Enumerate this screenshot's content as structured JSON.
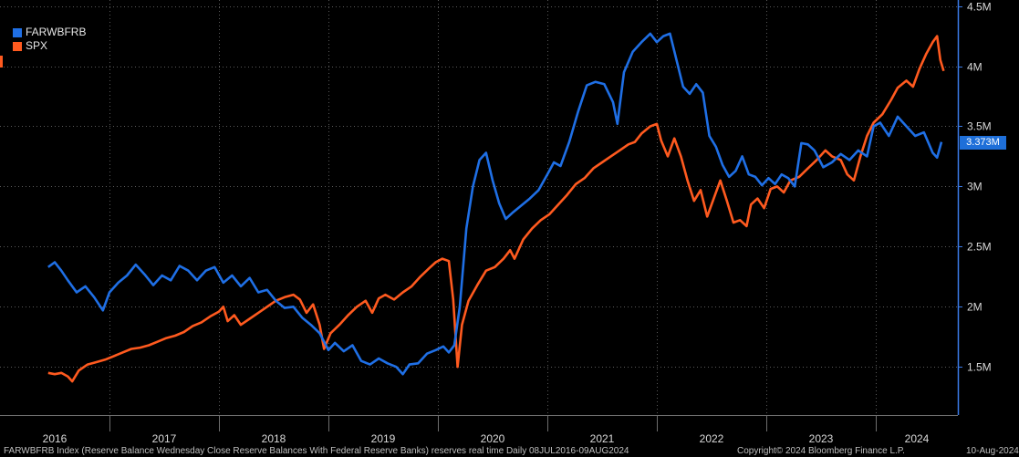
{
  "chart_data": {
    "type": "line",
    "x_labels": [
      "2016",
      "2017",
      "2018",
      "2019",
      "2020",
      "2021",
      "2022",
      "2023",
      "2024"
    ],
    "y_ticks": [
      "4.5M",
      "4M",
      "3.5M",
      "3M",
      "2.5M",
      "2M",
      "1.5M"
    ],
    "ylim": [
      1.1,
      4.55
    ],
    "grid": true,
    "legend_position": "top-left",
    "current_value_label": "3.373M",
    "series": [
      {
        "name": "FARWBFRB",
        "color": "#1f6fe5",
        "points": [
          [
            2016.44,
            2.33
          ],
          [
            2016.5,
            2.37
          ],
          [
            2016.56,
            2.3
          ],
          [
            2016.62,
            2.22
          ],
          [
            2016.7,
            2.12
          ],
          [
            2016.78,
            2.17
          ],
          [
            2016.86,
            2.08
          ],
          [
            2016.94,
            1.97
          ],
          [
            2017.0,
            2.12
          ],
          [
            2017.08,
            2.2
          ],
          [
            2017.16,
            2.26
          ],
          [
            2017.24,
            2.35
          ],
          [
            2017.32,
            2.27
          ],
          [
            2017.4,
            2.18
          ],
          [
            2017.48,
            2.26
          ],
          [
            2017.56,
            2.22
          ],
          [
            2017.64,
            2.34
          ],
          [
            2017.72,
            2.3
          ],
          [
            2017.8,
            2.22
          ],
          [
            2017.88,
            2.3
          ],
          [
            2017.96,
            2.33
          ],
          [
            2018.04,
            2.2
          ],
          [
            2018.12,
            2.26
          ],
          [
            2018.2,
            2.17
          ],
          [
            2018.28,
            2.24
          ],
          [
            2018.36,
            2.12
          ],
          [
            2018.44,
            2.14
          ],
          [
            2018.52,
            2.05
          ],
          [
            2018.6,
            1.99
          ],
          [
            2018.68,
            2.0
          ],
          [
            2018.76,
            1.91
          ],
          [
            2018.84,
            1.85
          ],
          [
            2018.92,
            1.78
          ],
          [
            2019.0,
            1.64
          ],
          [
            2019.06,
            1.7
          ],
          [
            2019.14,
            1.63
          ],
          [
            2019.22,
            1.68
          ],
          [
            2019.3,
            1.55
          ],
          [
            2019.38,
            1.52
          ],
          [
            2019.46,
            1.57
          ],
          [
            2019.54,
            1.53
          ],
          [
            2019.62,
            1.5
          ],
          [
            2019.68,
            1.44
          ],
          [
            2019.74,
            1.52
          ],
          [
            2019.82,
            1.53
          ],
          [
            2019.9,
            1.61
          ],
          [
            2019.98,
            1.64
          ],
          [
            2020.05,
            1.67
          ],
          [
            2020.1,
            1.62
          ],
          [
            2020.15,
            1.68
          ],
          [
            2020.2,
            2.0
          ],
          [
            2020.26,
            2.65
          ],
          [
            2020.32,
            3.0
          ],
          [
            2020.38,
            3.22
          ],
          [
            2020.44,
            3.28
          ],
          [
            2020.5,
            3.05
          ],
          [
            2020.56,
            2.86
          ],
          [
            2020.62,
            2.73
          ],
          [
            2020.68,
            2.78
          ],
          [
            2020.76,
            2.84
          ],
          [
            2020.84,
            2.9
          ],
          [
            2020.92,
            2.97
          ],
          [
            2021.0,
            3.1
          ],
          [
            2021.06,
            3.2
          ],
          [
            2021.12,
            3.17
          ],
          [
            2021.2,
            3.37
          ],
          [
            2021.28,
            3.62
          ],
          [
            2021.36,
            3.84
          ],
          [
            2021.44,
            3.87
          ],
          [
            2021.52,
            3.85
          ],
          [
            2021.6,
            3.7
          ],
          [
            2021.64,
            3.52
          ],
          [
            2021.7,
            3.95
          ],
          [
            2021.78,
            4.12
          ],
          [
            2021.86,
            4.2
          ],
          [
            2021.94,
            4.27
          ],
          [
            2022.0,
            4.2
          ],
          [
            2022.06,
            4.25
          ],
          [
            2022.12,
            4.27
          ],
          [
            2022.18,
            4.05
          ],
          [
            2022.24,
            3.83
          ],
          [
            2022.3,
            3.77
          ],
          [
            2022.36,
            3.85
          ],
          [
            2022.42,
            3.78
          ],
          [
            2022.48,
            3.42
          ],
          [
            2022.54,
            3.33
          ],
          [
            2022.6,
            3.18
          ],
          [
            2022.66,
            3.08
          ],
          [
            2022.72,
            3.13
          ],
          [
            2022.78,
            3.25
          ],
          [
            2022.84,
            3.1
          ],
          [
            2022.9,
            3.08
          ],
          [
            2022.96,
            3.01
          ],
          [
            2023.02,
            3.07
          ],
          [
            2023.08,
            3.02
          ],
          [
            2023.14,
            3.1
          ],
          [
            2023.2,
            3.07
          ],
          [
            2023.26,
            3.0
          ],
          [
            2023.32,
            3.36
          ],
          [
            2023.38,
            3.35
          ],
          [
            2023.44,
            3.3
          ],
          [
            2023.52,
            3.16
          ],
          [
            2023.6,
            3.2
          ],
          [
            2023.68,
            3.27
          ],
          [
            2023.76,
            3.22
          ],
          [
            2023.84,
            3.3
          ],
          [
            2023.92,
            3.25
          ],
          [
            2023.98,
            3.5
          ],
          [
            2024.04,
            3.53
          ],
          [
            2024.12,
            3.42
          ],
          [
            2024.2,
            3.58
          ],
          [
            2024.28,
            3.5
          ],
          [
            2024.36,
            3.42
          ],
          [
            2024.44,
            3.45
          ],
          [
            2024.52,
            3.28
          ],
          [
            2024.56,
            3.24
          ],
          [
            2024.6,
            3.37
          ]
        ]
      },
      {
        "name": "SPX",
        "color": "#ff5a1f",
        "points": [
          [
            2016.44,
            1.45
          ],
          [
            2016.5,
            1.44
          ],
          [
            2016.56,
            1.45
          ],
          [
            2016.62,
            1.42
          ],
          [
            2016.66,
            1.38
          ],
          [
            2016.72,
            1.47
          ],
          [
            2016.8,
            1.52
          ],
          [
            2016.88,
            1.54
          ],
          [
            2016.96,
            1.56
          ],
          [
            2017.04,
            1.59
          ],
          [
            2017.12,
            1.62
          ],
          [
            2017.2,
            1.65
          ],
          [
            2017.28,
            1.66
          ],
          [
            2017.36,
            1.68
          ],
          [
            2017.44,
            1.71
          ],
          [
            2017.52,
            1.74
          ],
          [
            2017.6,
            1.76
          ],
          [
            2017.68,
            1.79
          ],
          [
            2017.76,
            1.84
          ],
          [
            2017.84,
            1.87
          ],
          [
            2017.92,
            1.92
          ],
          [
            2018.0,
            1.96
          ],
          [
            2018.04,
            2.0
          ],
          [
            2018.08,
            1.88
          ],
          [
            2018.14,
            1.93
          ],
          [
            2018.2,
            1.85
          ],
          [
            2018.28,
            1.9
          ],
          [
            2018.36,
            1.95
          ],
          [
            2018.44,
            2.0
          ],
          [
            2018.52,
            2.05
          ],
          [
            2018.6,
            2.08
          ],
          [
            2018.68,
            2.1
          ],
          [
            2018.74,
            2.06
          ],
          [
            2018.8,
            1.95
          ],
          [
            2018.86,
            2.02
          ],
          [
            2018.92,
            1.85
          ],
          [
            2018.96,
            1.65
          ],
          [
            2019.02,
            1.78
          ],
          [
            2019.1,
            1.85
          ],
          [
            2019.18,
            1.93
          ],
          [
            2019.26,
            2.0
          ],
          [
            2019.34,
            2.05
          ],
          [
            2019.4,
            1.95
          ],
          [
            2019.46,
            2.07
          ],
          [
            2019.52,
            2.1
          ],
          [
            2019.6,
            2.06
          ],
          [
            2019.68,
            2.12
          ],
          [
            2019.76,
            2.17
          ],
          [
            2019.84,
            2.25
          ],
          [
            2019.92,
            2.32
          ],
          [
            2019.98,
            2.37
          ],
          [
            2020.04,
            2.4
          ],
          [
            2020.1,
            2.38
          ],
          [
            2020.14,
            2.06
          ],
          [
            2020.18,
            1.5
          ],
          [
            2020.22,
            1.85
          ],
          [
            2020.28,
            2.05
          ],
          [
            2020.36,
            2.18
          ],
          [
            2020.44,
            2.3
          ],
          [
            2020.52,
            2.33
          ],
          [
            2020.6,
            2.4
          ],
          [
            2020.66,
            2.47
          ],
          [
            2020.7,
            2.4
          ],
          [
            2020.78,
            2.56
          ],
          [
            2020.86,
            2.65
          ],
          [
            2020.94,
            2.72
          ],
          [
            2021.02,
            2.77
          ],
          [
            2021.1,
            2.85
          ],
          [
            2021.18,
            2.93
          ],
          [
            2021.26,
            3.02
          ],
          [
            2021.34,
            3.07
          ],
          [
            2021.42,
            3.15
          ],
          [
            2021.5,
            3.2
          ],
          [
            2021.58,
            3.25
          ],
          [
            2021.66,
            3.3
          ],
          [
            2021.74,
            3.35
          ],
          [
            2021.8,
            3.37
          ],
          [
            2021.86,
            3.44
          ],
          [
            2021.94,
            3.5
          ],
          [
            2022.0,
            3.52
          ],
          [
            2022.04,
            3.38
          ],
          [
            2022.1,
            3.25
          ],
          [
            2022.16,
            3.4
          ],
          [
            2022.22,
            3.25
          ],
          [
            2022.28,
            3.05
          ],
          [
            2022.34,
            2.88
          ],
          [
            2022.4,
            2.97
          ],
          [
            2022.46,
            2.75
          ],
          [
            2022.52,
            2.9
          ],
          [
            2022.58,
            3.05
          ],
          [
            2022.64,
            2.88
          ],
          [
            2022.7,
            2.7
          ],
          [
            2022.76,
            2.72
          ],
          [
            2022.82,
            2.67
          ],
          [
            2022.86,
            2.85
          ],
          [
            2022.92,
            2.9
          ],
          [
            2022.98,
            2.82
          ],
          [
            2023.04,
            2.98
          ],
          [
            2023.1,
            3.0
          ],
          [
            2023.16,
            2.95
          ],
          [
            2023.22,
            3.05
          ],
          [
            2023.3,
            3.08
          ],
          [
            2023.38,
            3.15
          ],
          [
            2023.46,
            3.22
          ],
          [
            2023.54,
            3.3
          ],
          [
            2023.6,
            3.25
          ],
          [
            2023.68,
            3.22
          ],
          [
            2023.74,
            3.1
          ],
          [
            2023.8,
            3.05
          ],
          [
            2023.86,
            3.25
          ],
          [
            2023.92,
            3.42
          ],
          [
            2023.98,
            3.53
          ],
          [
            2024.06,
            3.6
          ],
          [
            2024.14,
            3.72
          ],
          [
            2024.2,
            3.82
          ],
          [
            2024.28,
            3.88
          ],
          [
            2024.34,
            3.83
          ],
          [
            2024.4,
            3.98
          ],
          [
            2024.46,
            4.1
          ],
          [
            2024.52,
            4.2
          ],
          [
            2024.56,
            4.25
          ],
          [
            2024.59,
            4.05
          ],
          [
            2024.62,
            3.96
          ]
        ]
      }
    ]
  },
  "footer": {
    "description": "FARWBFRB Index (Reserve Balance Wednesday Close Reserve Balances With Federal Reserve Banks) reserves real time  Daily 08JUL2016-09AUG2024",
    "copyright": "Copyright© 2024 Bloomberg Finance L.P.",
    "date": "10-Aug-2024"
  }
}
